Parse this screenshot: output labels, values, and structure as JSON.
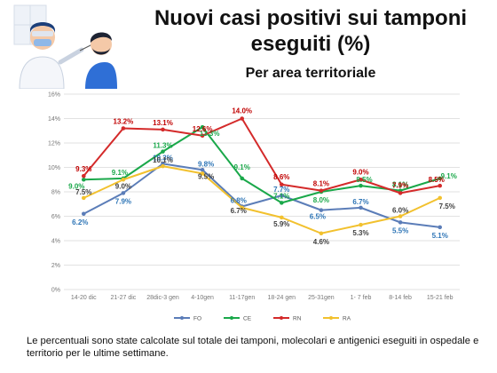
{
  "header": {
    "title": "Nuovi casi positivi sui tamponi eseguiti (%)",
    "subtitle": "Per area territoriale"
  },
  "footnote": "Le percentuali sono state calcolate sul totale dei tamponi, molecolari e antigenici eseguiti in ospedale e territorio per le ultime settimane.",
  "chart_data": {
    "type": "line",
    "categories": [
      "14-20 dic",
      "21-27 dic",
      "28dic-3 gen",
      "4-10gen",
      "11-17gen",
      "18-24 gen",
      "25-31gen",
      "1- 7 feb",
      "8-14 feb",
      "15-21 feb"
    ],
    "ylim": [
      0,
      16
    ],
    "yticks": [
      "0%",
      "2%",
      "4%",
      "6%",
      "8%",
      "10%",
      "12%",
      "14%",
      "16%"
    ],
    "grid": true,
    "legend_position": "bottom",
    "series": [
      {
        "name": "FO",
        "color": "#5b7db8",
        "label_color": "#2e75b6",
        "values": [
          6.2,
          7.9,
          10.3,
          9.8,
          6.8,
          7.7,
          6.5,
          6.7,
          5.5,
          5.1
        ],
        "labels": [
          "6.2%",
          "7.9%",
          "10.3%",
          "9.8%",
          "6.8%",
          "7.7%",
          "6.5%",
          "6.7%",
          "5.5%",
          "5.1%"
        ]
      },
      {
        "name": "CE",
        "color": "#1aa84a",
        "label_color": "#1aa84a",
        "values": [
          9.0,
          9.1,
          11.3,
          13.3,
          9.1,
          7.1,
          8.0,
          8.5,
          8.1,
          9.1
        ],
        "labels": [
          "9.0%",
          "9.1%",
          "11.3%",
          "13.3%",
          "9.1%",
          "7.1%",
          "8.0%",
          "8.5%",
          "8.1%",
          "9.1%"
        ]
      },
      {
        "name": "RN",
        "color": "#d42a2a",
        "label_color": "#c00000",
        "values": [
          9.3,
          13.2,
          13.1,
          12.6,
          14.0,
          8.6,
          8.1,
          9.0,
          7.9,
          8.5
        ],
        "labels": [
          "9.3%",
          "13.2%",
          "13.1%",
          "12.6%",
          "14.0%",
          "8.6%",
          "8.1%",
          "9.0%",
          "7.9%",
          "8.5%"
        ]
      },
      {
        "name": "RA",
        "color": "#f2c12e",
        "label_color": "#404040",
        "values": [
          7.5,
          9.0,
          10.1,
          9.5,
          6.7,
          5.9,
          4.6,
          5.3,
          6.0,
          7.5
        ],
        "labels": [
          "7.5%",
          "9.0%",
          "10.1%",
          "9.5%",
          "6.7%",
          "5.9%",
          "4.6%",
          "5.3%",
          "6.0%",
          "7.5%"
        ]
      }
    ]
  }
}
